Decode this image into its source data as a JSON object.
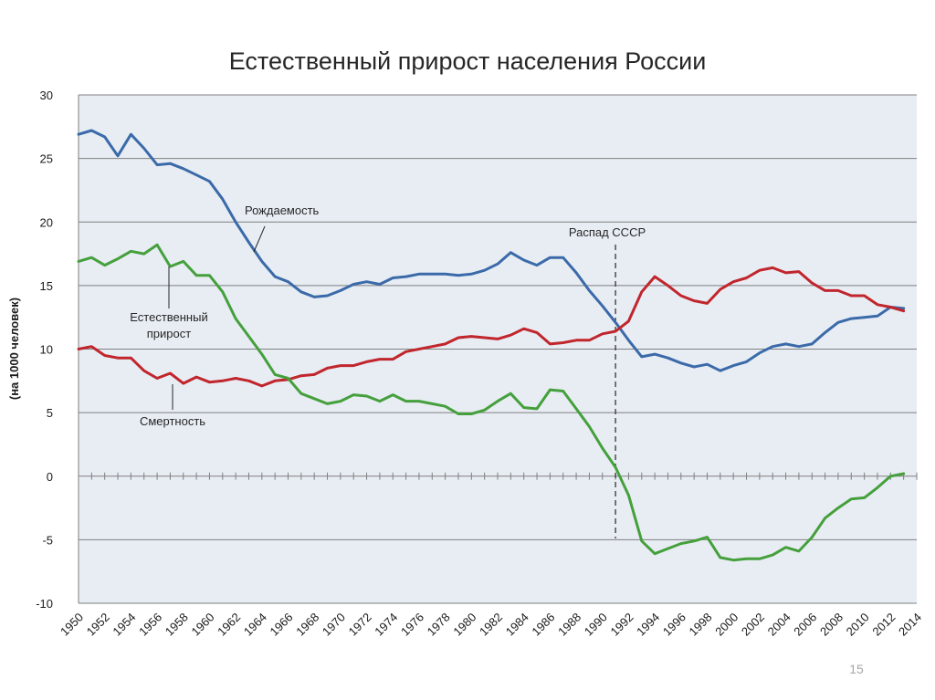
{
  "page_number": "15",
  "chart_data": {
    "type": "line",
    "title": "Естественный прирост населения России",
    "xlabel": "",
    "ylabel": "(на 1000 человек)",
    "xlim": [
      1950,
      2014
    ],
    "ylim": [
      -10,
      30
    ],
    "yticks": [
      "-10",
      "-5",
      "0",
      "5",
      "10",
      "15",
      "20",
      "25",
      "30"
    ],
    "xticks": [
      "1950",
      "1952",
      "1954",
      "1956",
      "1958",
      "1960",
      "1962",
      "1964",
      "1966",
      "1968",
      "1970",
      "1972",
      "1974",
      "1976",
      "1978",
      "1980",
      "1982",
      "1984",
      "1986",
      "1988",
      "1990",
      "1992",
      "1994",
      "1996",
      "1998",
      "2000",
      "2002",
      "2004",
      "2006",
      "2008",
      "2010",
      "2012",
      "2014"
    ],
    "grid": true,
    "colors": {
      "birth": "#3b6aa9",
      "death": "#c0262c",
      "natural": "#45a03c",
      "background": "#e8edf4"
    },
    "x": [
      1950,
      1951,
      1952,
      1953,
      1954,
      1955,
      1956,
      1957,
      1958,
      1959,
      1960,
      1961,
      1962,
      1963,
      1964,
      1965,
      1966,
      1967,
      1968,
      1969,
      1970,
      1971,
      1972,
      1973,
      1974,
      1975,
      1976,
      1977,
      1978,
      1979,
      1980,
      1981,
      1982,
      1983,
      1984,
      1985,
      1986,
      1987,
      1988,
      1989,
      1990,
      1991,
      1992,
      1993,
      1994,
      1995,
      1996,
      1997,
      1998,
      1999,
      2000,
      2001,
      2002,
      2003,
      2004,
      2005,
      2006,
      2007,
      2008,
      2009,
      2010,
      2011,
      2012,
      2013
    ],
    "series": [
      {
        "name": "Рождаемость",
        "key": "birth",
        "values": [
          26.9,
          27.2,
          26.7,
          25.2,
          26.9,
          25.8,
          24.5,
          24.6,
          24.2,
          23.7,
          23.2,
          21.8,
          20.0,
          18.4,
          16.9,
          15.7,
          15.3,
          14.5,
          14.1,
          14.2,
          14.6,
          15.1,
          15.3,
          15.1,
          15.6,
          15.7,
          15.9,
          15.9,
          15.9,
          15.8,
          15.9,
          16.2,
          16.7,
          17.6,
          17.0,
          16.6,
          17.2,
          17.2,
          16.0,
          14.6,
          13.4,
          12.1,
          10.7,
          9.4,
          9.6,
          9.3,
          8.9,
          8.6,
          8.8,
          8.3,
          8.7,
          9.0,
          9.7,
          10.2,
          10.4,
          10.2,
          10.4,
          11.3,
          12.1,
          12.4,
          12.5,
          12.6,
          13.3,
          13.2
        ]
      },
      {
        "name": "Смертность",
        "key": "death",
        "values": [
          10.0,
          10.2,
          9.5,
          9.3,
          9.3,
          8.3,
          7.7,
          8.1,
          7.3,
          7.8,
          7.4,
          7.5,
          7.7,
          7.5,
          7.1,
          7.5,
          7.6,
          7.9,
          8.0,
          8.5,
          8.7,
          8.7,
          9.0,
          9.2,
          9.2,
          9.8,
          10.0,
          10.2,
          10.4,
          10.9,
          11.0,
          10.9,
          10.8,
          11.1,
          11.6,
          11.3,
          10.4,
          10.5,
          10.7,
          10.7,
          11.2,
          11.4,
          12.2,
          14.5,
          15.7,
          15.0,
          14.2,
          13.8,
          13.6,
          14.7,
          15.3,
          15.6,
          16.2,
          16.4,
          16.0,
          16.1,
          15.2,
          14.6,
          14.6,
          14.2,
          14.2,
          13.5,
          13.3,
          13.0
        ]
      },
      {
        "name": "Естественный прирост",
        "key": "natural",
        "values": [
          16.9,
          17.2,
          16.6,
          17.1,
          17.7,
          17.5,
          18.2,
          16.5,
          16.9,
          15.8,
          15.8,
          14.5,
          12.4,
          11.0,
          9.6,
          8.0,
          7.7,
          6.5,
          6.1,
          5.7,
          5.9,
          6.4,
          6.3,
          5.9,
          6.4,
          5.9,
          5.9,
          5.7,
          5.5,
          4.9,
          4.9,
          5.2,
          5.9,
          6.5,
          5.4,
          5.3,
          6.8,
          6.7,
          5.3,
          3.9,
          2.2,
          0.7,
          -1.5,
          -5.1,
          -6.1,
          -5.7,
          -5.3,
          -5.1,
          -4.8,
          -6.4,
          -6.6,
          -6.5,
          -6.5,
          -6.2,
          -5.6,
          -5.9,
          -4.8,
          -3.3,
          -2.5,
          -1.8,
          -1.7,
          -0.9,
          0.0,
          0.2
        ]
      }
    ],
    "annotations": {
      "birth_label": "Рождаемость",
      "natural_label_line1": "Естественный",
      "natural_label_line2": "прирост",
      "death_label": "Смертность",
      "event_label": "Распад СССР",
      "event_x": 1991
    }
  }
}
